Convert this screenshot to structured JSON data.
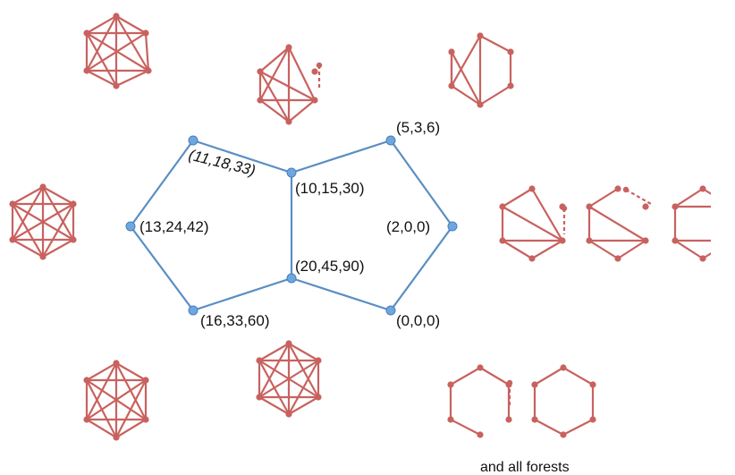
{
  "colors": {
    "graph_edge": "#c8625f",
    "graph_node": "#c8625f",
    "polytope_edge": "#5a8ec4",
    "polytope_vertex": "#6ea6e0"
  },
  "polytope": {
    "vertex_labels": [
      "(11,18,33)",
      "(10,15,30)",
      "(5,3,6)",
      "(13,24,42)",
      "(2,0,0)",
      "(20,45,90)",
      "(16,33,60)",
      "(0,0,0)"
    ]
  },
  "caption": "and all forests"
}
